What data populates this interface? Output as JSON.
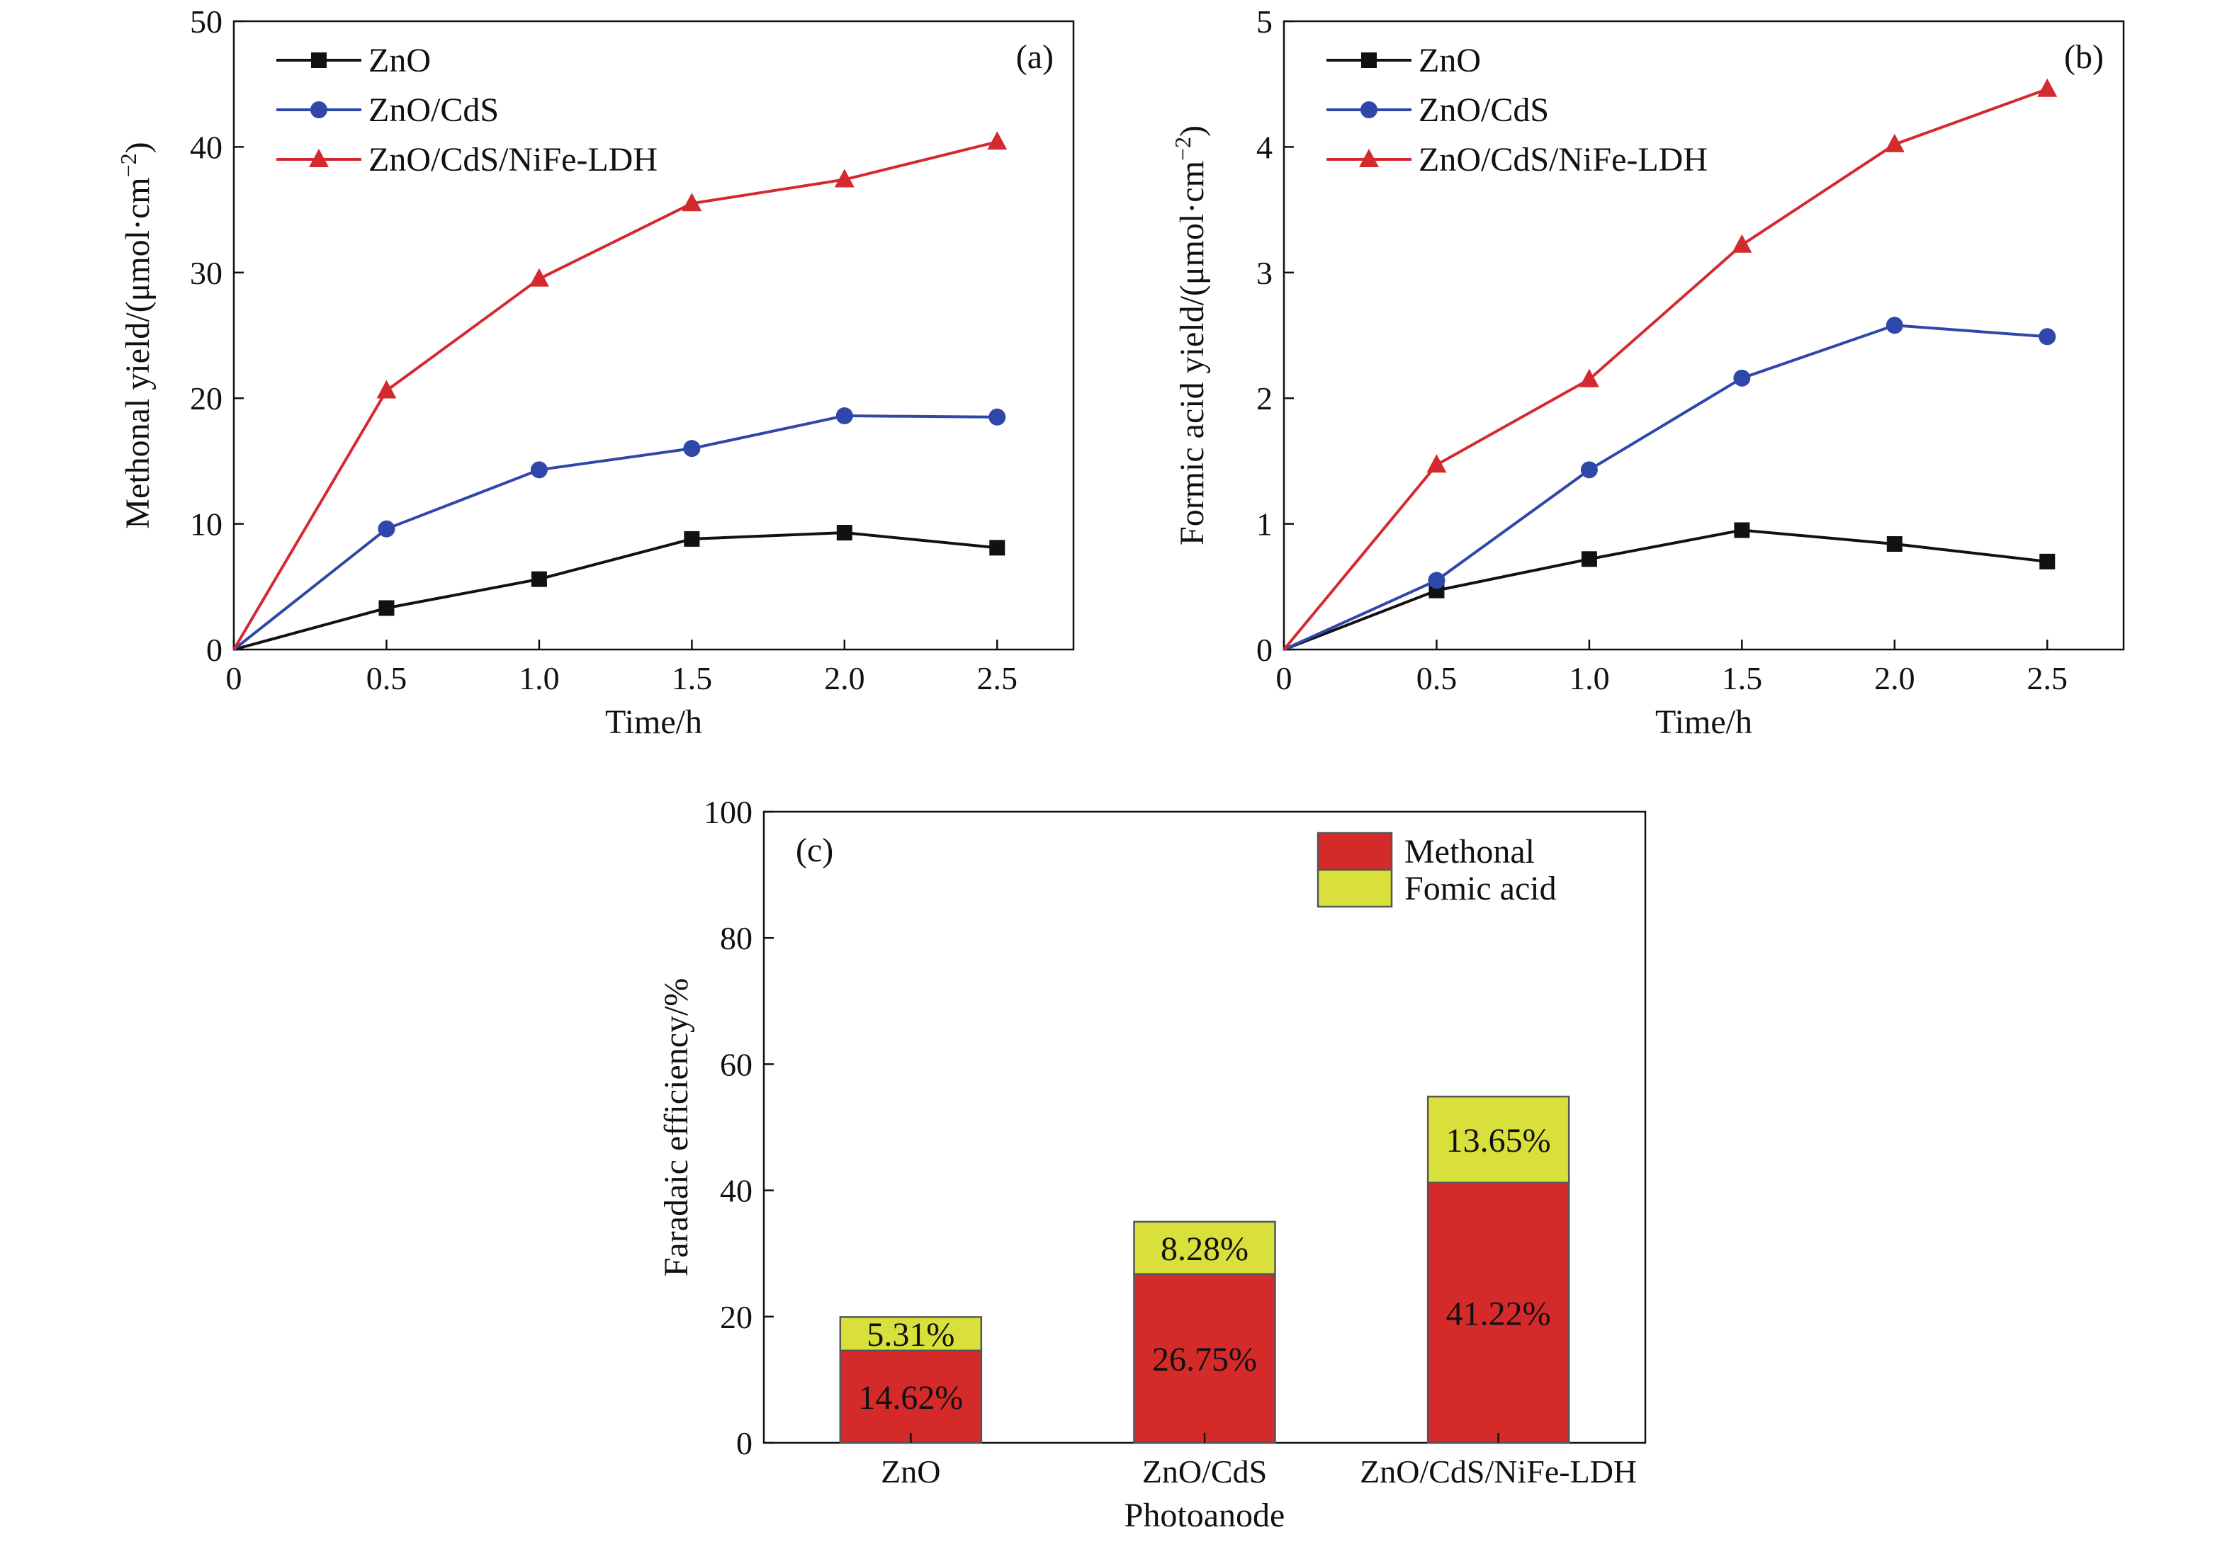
{
  "chart_data": [
    {
      "type": "line",
      "panel_label": "(a)",
      "xlabel": "Time/h",
      "ylabel": "Methonal yield/(μmol·cm",
      "ylabel_sup": "−2",
      "ylabel_end": ")",
      "x": [
        0,
        0.5,
        1.0,
        1.5,
        2.0,
        2.5
      ],
      "x_tick_labels": [
        "0",
        "0.5",
        "1.0",
        "1.5",
        "2.0",
        "2.5"
      ],
      "xlim": [
        0,
        2.75
      ],
      "ylim": [
        0,
        50
      ],
      "y_ticks": [
        0,
        10,
        20,
        30,
        40,
        50
      ],
      "y_tick_labels": [
        "0",
        "10",
        "20",
        "30",
        "40",
        "50"
      ],
      "grid": false,
      "legend_position": "top-left",
      "series": [
        {
          "name": "ZnO",
          "color": "#111111",
          "marker": "square",
          "values": [
            0,
            3.3,
            5.6,
            8.8,
            9.3,
            8.1
          ]
        },
        {
          "name": "ZnO/CdS",
          "color": "#2f47a8",
          "marker": "circle",
          "values": [
            0,
            9.6,
            14.3,
            16.0,
            18.6,
            18.5
          ]
        },
        {
          "name": "ZnO/CdS/NiFe-LDH",
          "color": "#d42a2f",
          "marker": "triangle",
          "values": [
            0,
            20.6,
            29.5,
            35.5,
            37.4,
            40.4
          ]
        }
      ]
    },
    {
      "type": "line",
      "panel_label": "(b)",
      "xlabel": "Time/h",
      "ylabel": "Formic acid yield/(μmol·cm",
      "ylabel_sup": "−2",
      "ylabel_end": ")",
      "x": [
        0,
        0.5,
        1.0,
        1.5,
        2.0,
        2.5
      ],
      "x_tick_labels": [
        "0",
        "0.5",
        "1.0",
        "1.5",
        "2.0",
        "2.5"
      ],
      "xlim": [
        0,
        2.75
      ],
      "ylim": [
        0,
        5
      ],
      "y_ticks": [
        0,
        1,
        2,
        3,
        4,
        5
      ],
      "y_tick_labels": [
        "0",
        "1",
        "2",
        "3",
        "4",
        "5"
      ],
      "grid": false,
      "legend_position": "top-left",
      "series": [
        {
          "name": "ZnO",
          "color": "#111111",
          "marker": "square",
          "values": [
            0,
            0.47,
            0.72,
            0.95,
            0.84,
            0.7
          ]
        },
        {
          "name": "ZnO/CdS",
          "color": "#2f47a8",
          "marker": "circle",
          "values": [
            0,
            0.55,
            1.43,
            2.16,
            2.58,
            2.49
          ]
        },
        {
          "name": "ZnO/CdS/NiFe-LDH",
          "color": "#d42a2f",
          "marker": "triangle",
          "values": [
            0,
            1.47,
            2.15,
            3.22,
            4.02,
            4.46
          ]
        }
      ]
    },
    {
      "type": "bar",
      "stacked": true,
      "panel_label": "(c)",
      "xlabel": "Photoanode",
      "ylabel": "Faradaic efficiency/%",
      "categories": [
        "ZnO",
        "ZnO/CdS",
        "ZnO/CdS/NiFe-LDH"
      ],
      "ylim": [
        0,
        100
      ],
      "y_ticks": [
        0,
        20,
        40,
        60,
        80,
        100
      ],
      "y_tick_labels": [
        "0",
        "20",
        "40",
        "60",
        "80",
        "100"
      ],
      "grid": false,
      "legend_position": "top-right",
      "series": [
        {
          "name": "Methonal",
          "color": "#d42a2a",
          "values": [
            14.62,
            26.75,
            41.22
          ],
          "labels": [
            "14.62%",
            "26.75%",
            "41.22%"
          ]
        },
        {
          "name": "Fomic acid",
          "color": "#d9e03c",
          "values": [
            5.31,
            8.28,
            13.65
          ],
          "labels": [
            "5.31%",
            "8.28%",
            "13.65%"
          ]
        }
      ]
    }
  ]
}
